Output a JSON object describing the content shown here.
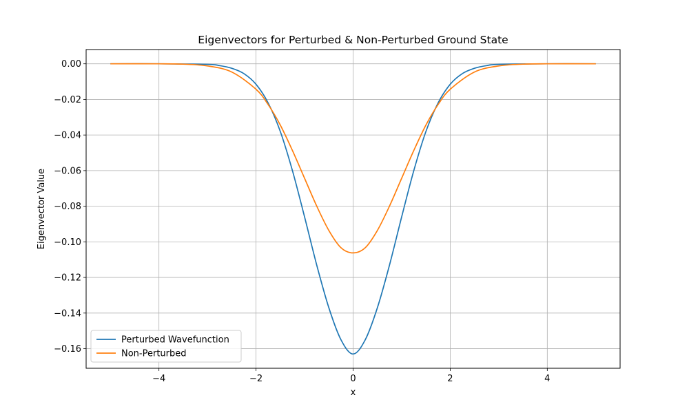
{
  "chart_data": {
    "type": "line",
    "title": "Eigenvectors for Perturbed & Non-Perturbed Ground State",
    "xlabel": "x",
    "ylabel": "Eigenvector Value",
    "xlim": [
      -5.5,
      5.5
    ],
    "ylim": [
      -0.171,
      0.008
    ],
    "xticks": [
      -4,
      -2,
      0,
      2,
      4
    ],
    "xtick_labels": [
      "−4",
      "−2",
      "0",
      "2",
      "4"
    ],
    "yticks": [
      0.0,
      -0.02,
      -0.04,
      -0.06,
      -0.08,
      -0.1,
      -0.12,
      -0.14,
      -0.16
    ],
    "ytick_labels": [
      "0.00",
      "−0.02",
      "−0.04",
      "−0.06",
      "−0.08",
      "−0.10",
      "−0.12",
      "−0.14",
      "−0.16"
    ],
    "grid": true,
    "legend_position": "lower-left",
    "series": [
      {
        "name": "Perturbed Wavefunction",
        "color": "#1f77b4",
        "x": [
          -5.0,
          -4.0,
          -3.0,
          -2.75,
          -2.5,
          -2.25,
          -2.0,
          -1.75,
          -1.5,
          -1.25,
          -1.0,
          -0.75,
          -0.5,
          -0.25,
          0.0,
          0.25,
          0.5,
          0.75,
          1.0,
          1.25,
          1.5,
          1.75,
          2.0,
          2.25,
          2.5,
          2.75,
          3.0,
          4.0,
          5.0
        ],
        "y": [
          0.0,
          0.0,
          -0.0003,
          -0.001,
          -0.0025,
          -0.0055,
          -0.0115,
          -0.022,
          -0.038,
          -0.06,
          -0.086,
          -0.113,
          -0.137,
          -0.155,
          -0.163,
          -0.155,
          -0.137,
          -0.113,
          -0.086,
          -0.06,
          -0.038,
          -0.022,
          -0.0115,
          -0.0055,
          -0.0025,
          -0.001,
          -0.0003,
          0.0,
          0.0
        ]
      },
      {
        "name": "Non-Perturbed",
        "color": "#ff7f0e",
        "x": [
          -5.0,
          -4.0,
          -3.5,
          -3.0,
          -2.5,
          -2.0,
          -1.75,
          -1.5,
          -1.25,
          -1.0,
          -0.75,
          -0.5,
          -0.25,
          0.0,
          0.25,
          0.5,
          0.75,
          1.0,
          1.25,
          1.5,
          1.75,
          2.0,
          2.5,
          3.0,
          3.5,
          4.0,
          5.0
        ],
        "y": [
          0.0,
          0.0,
          -0.0002,
          -0.0012,
          -0.0046,
          -0.0143,
          -0.0229,
          -0.0344,
          -0.0487,
          -0.0643,
          -0.0799,
          -0.0936,
          -0.1033,
          -0.1062,
          -0.1033,
          -0.0936,
          -0.0799,
          -0.0643,
          -0.0487,
          -0.0344,
          -0.0229,
          -0.0143,
          -0.0046,
          -0.0012,
          -0.0002,
          0.0,
          0.0
        ]
      }
    ]
  }
}
